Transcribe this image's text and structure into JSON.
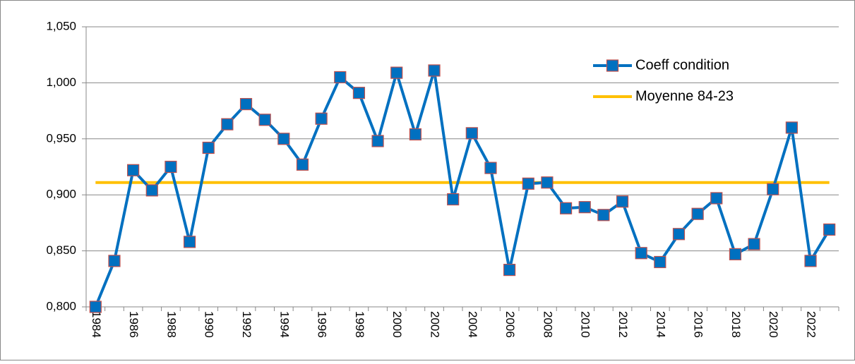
{
  "chart_data": {
    "type": "line",
    "categories": [
      "1984",
      null,
      "1986",
      null,
      "1988",
      null,
      "1990",
      null,
      "1992",
      null,
      "1994",
      null,
      "1996",
      null,
      "1998",
      null,
      "2000",
      null,
      "2002",
      null,
      "2004",
      null,
      "2006",
      null,
      "2008",
      null,
      "2010",
      null,
      "2012",
      null,
      "2014",
      null,
      "2016",
      null,
      "2018",
      null,
      "2020",
      null,
      "2022",
      null
    ],
    "series": [
      {
        "name": "Coeff condition",
        "color": "#0070c0",
        "marker_edge": "#c0504d",
        "values": [
          0.8,
          0.841,
          0.922,
          0.904,
          0.925,
          0.858,
          0.942,
          0.963,
          0.981,
          0.967,
          0.95,
          0.927,
          0.968,
          1.005,
          0.991,
          0.948,
          1.009,
          0.954,
          1.011,
          0.896,
          0.955,
          0.924,
          0.833,
          0.91,
          0.911,
          0.888,
          0.889,
          0.882,
          0.894,
          0.848,
          0.84,
          0.865,
          0.883,
          0.897,
          0.847,
          0.856,
          0.905,
          0.96,
          0.841,
          0.869
        ]
      },
      {
        "name": "Moyenne 84-23",
        "color": "#ffc000",
        "values": [
          0.911,
          0.911,
          0.911,
          0.911,
          0.911,
          0.911,
          0.911,
          0.911,
          0.911,
          0.911,
          0.911,
          0.911,
          0.911,
          0.911,
          0.911,
          0.911,
          0.911,
          0.911,
          0.911,
          0.911,
          0.911,
          0.911,
          0.911,
          0.911,
          0.911,
          0.911,
          0.911,
          0.911,
          0.911,
          0.911,
          0.911,
          0.911,
          0.911,
          0.911,
          0.911,
          0.911,
          0.911,
          0.911,
          0.911,
          0.911
        ]
      }
    ],
    "ylim": [
      0.8,
      1.05
    ],
    "yticks": [
      {
        "value": 0.8,
        "label": "0,800"
      },
      {
        "value": 0.85,
        "label": "0,850"
      },
      {
        "value": 0.9,
        "label": "0,900"
      },
      {
        "value": 0.95,
        "label": "0,950"
      },
      {
        "value": 1.0,
        "label": "1,000"
      },
      {
        "value": 1.05,
        "label": "1,050"
      }
    ],
    "grid": true
  }
}
